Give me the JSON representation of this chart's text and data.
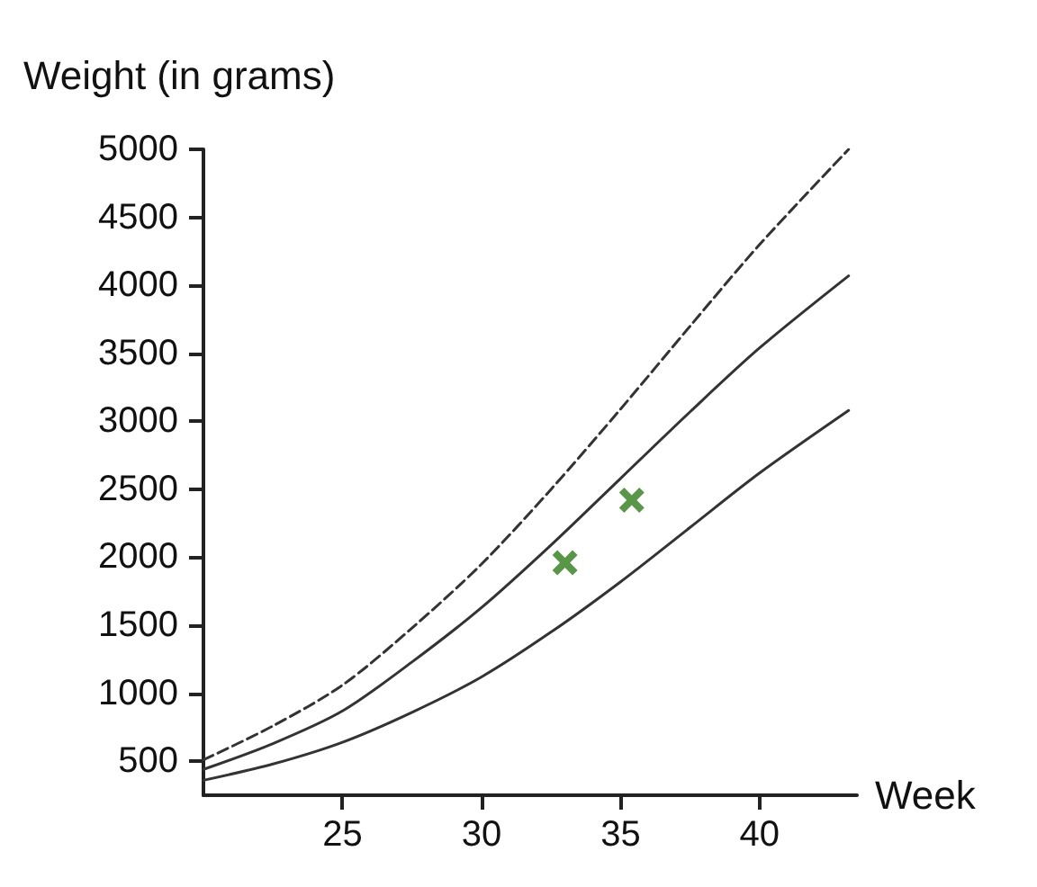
{
  "chart_data": {
    "type": "line",
    "xlabel": "Week",
    "ylabel": "Weight (in grams)",
    "xlim": [
      20,
      43.5
    ],
    "ylim": [
      250,
      5000
    ],
    "xticks": [
      25,
      30,
      35,
      40
    ],
    "yticks": [
      500,
      1000,
      1500,
      2000,
      2500,
      3000,
      3500,
      4000,
      4500,
      5000
    ],
    "grid": false,
    "series": [
      {
        "color": "#333333",
        "line_style": "solid",
        "marker": "none",
        "x": [
          20,
          22.5,
          25,
          27.5,
          30,
          32.5,
          35,
          37.5,
          40,
          43.2
        ],
        "values": [
          360,
          480,
          640,
          860,
          1120,
          1450,
          1820,
          2220,
          2620,
          3080
        ]
      },
      {
        "color": "#333333",
        "line_style": "solid",
        "marker": "none",
        "x": [
          20,
          22.5,
          25,
          27.5,
          30,
          32.5,
          35,
          37.5,
          40,
          43.2
        ],
        "values": [
          440,
          630,
          870,
          1230,
          1630,
          2090,
          2580,
          3070,
          3540,
          4070
        ]
      },
      {
        "color": "#333333",
        "line_style": "dashed",
        "marker": "none",
        "x": [
          20,
          22.5,
          25,
          27.5,
          30,
          32.5,
          35,
          37.5,
          40,
          43.2
        ],
        "values": [
          510,
          760,
          1060,
          1480,
          1950,
          2500,
          3090,
          3700,
          4300,
          5000
        ]
      },
      {
        "type": "scatter",
        "color": "#2e7d1a",
        "marker": "cross",
        "x": [
          33,
          35.4
        ],
        "values": [
          1960,
          2420
        ]
      }
    ]
  }
}
